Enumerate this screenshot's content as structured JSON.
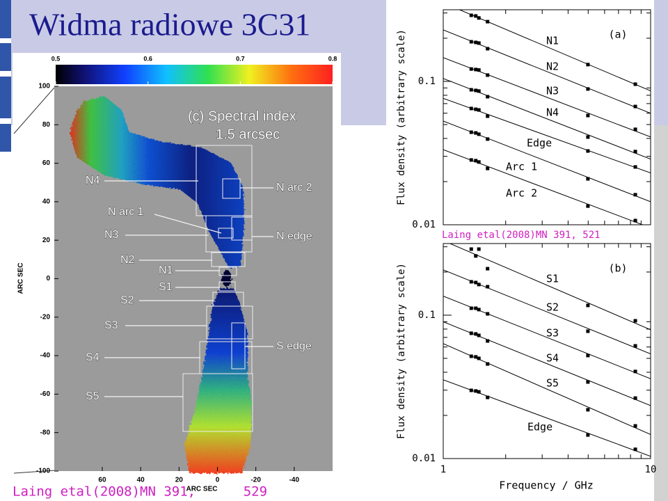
{
  "title": "Widma radiowe 3C31",
  "figure": {
    "title": [
      "(c) Spectral index",
      "1.5 arcsec"
    ],
    "colorbar": {
      "lim": [
        0.5,
        0.8
      ],
      "ticks": [
        0.5,
        0.6,
        0.7,
        0.8
      ]
    },
    "xlim": [
      85,
      -60
    ],
    "ylim": [
      -100,
      100
    ],
    "xticks": [
      60,
      40,
      20,
      0,
      -20,
      -40
    ],
    "yticks": [
      100,
      80,
      60,
      40,
      20,
      0,
      -20,
      -40,
      -60,
      -80,
      -100
    ],
    "xlabel": "ARC SEC",
    "ylabel": "ARC SEC",
    "regions": [
      "N4",
      "N arc 2",
      "N arc 1",
      "N3",
      "N edge",
      "N2",
      "N1",
      "S1",
      "S2",
      "S3",
      "S edge",
      "S4",
      "S5"
    ],
    "caption": "Laing etal(2008)MN 391,      529"
  },
  "chart_data": [
    {
      "type": "scatter",
      "label": "(a)",
      "ylabel": "Flux density (arbitrary scale)",
      "log": true,
      "color": "#000000",
      "caption": "Laing etal(2008)MN 391, 521",
      "x": [
        1.365,
        1.435,
        1.485,
        1.636,
        4.985,
        8.44
      ],
      "xlim": [
        1,
        10
      ],
      "ylim": [
        0.01,
        0.316
      ],
      "yticks": [
        0.1,
        0.01
      ],
      "series": [
        {
          "name": "N1",
          "values": [
            0.289,
            0.286,
            0.277,
            0.261,
            0.131,
            0.0956
          ]
        },
        {
          "name": "N2",
          "values": [
            0.189,
            0.187,
            0.185,
            0.169,
            0.0885,
            0.0668
          ]
        },
        {
          "name": "N3",
          "values": [
            0.122,
            0.121,
            0.12,
            0.1106,
            0.0578,
            0.0463
          ]
        },
        {
          "name": "N4",
          "values": [
            0.0874,
            0.0865,
            0.0856,
            0.0782,
            0.0409,
            0.0324
          ]
        },
        {
          "name": "Edge",
          "values": [
            0.0647,
            0.0639,
            0.0632,
            0.0572,
            0.0327,
            0.0253
          ]
        },
        {
          "name": "Arc 1",
          "values": [
            0.0442,
            0.0437,
            0.0428,
            0.0396,
            0.0209,
            0.0162
          ]
        },
        {
          "name": "Arc 2",
          "values": [
            0.0283,
            0.028,
            0.0274,
            0.0247,
            0.0135,
            0.0107
          ]
        }
      ]
    },
    {
      "type": "scatter",
      "label": "(b)",
      "ylabel": "Flux density (arbitrary scale)",
      "xlabel": "Frequency / GHz",
      "log": true,
      "color": "#000000",
      "x": [
        1.365,
        1.435,
        1.485,
        1.636,
        4.985,
        8.44
      ],
      "xlim": [
        1,
        10
      ],
      "ylim": [
        0.01,
        0.316
      ],
      "yticks": [
        0.1,
        0.01
      ],
      "xticks": [
        1,
        10
      ],
      "series": [
        {
          "name": "S1",
          "values": [
            0.289,
            0.259,
            0.289,
            0.211,
            0.117,
            0.0914
          ]
        },
        {
          "name": "S2",
          "values": [
            0.171,
            0.169,
            0.1636,
            0.158,
            0.0773,
            0.0611
          ]
        },
        {
          "name": "S3",
          "values": [
            0.1118,
            0.1118,
            0.1094,
            0.1022,
            0.0523,
            0.0405
          ]
        },
        {
          "name": "S4",
          "values": [
            0.0748,
            0.074,
            0.0723,
            0.0661,
            0.0342,
            0.0264
          ]
        },
        {
          "name": "S5",
          "values": [
            0.0517,
            0.0512,
            0.05,
            0.0457,
            0.0219,
            0.0169
          ]
        },
        {
          "name": "Edge",
          "values": [
            0.0299,
            0.0296,
            0.0292,
            0.0267,
            0.0146,
            0.0116
          ]
        }
      ]
    }
  ]
}
